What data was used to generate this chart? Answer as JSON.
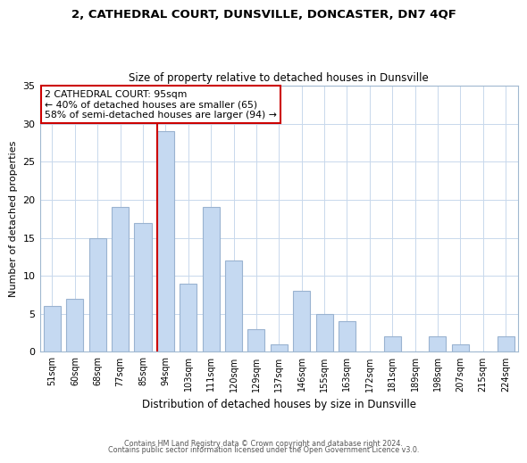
{
  "title1": "2, CATHEDRAL COURT, DUNSVILLE, DONCASTER, DN7 4QF",
  "title2": "Size of property relative to detached houses in Dunsville",
  "xlabel": "Distribution of detached houses by size in Dunsville",
  "ylabel": "Number of detached properties",
  "bar_labels": [
    "51sqm",
    "60sqm",
    "68sqm",
    "77sqm",
    "85sqm",
    "94sqm",
    "103sqm",
    "111sqm",
    "120sqm",
    "129sqm",
    "137sqm",
    "146sqm",
    "155sqm",
    "163sqm",
    "172sqm",
    "181sqm",
    "189sqm",
    "198sqm",
    "207sqm",
    "215sqm",
    "224sqm"
  ],
  "bar_values": [
    6,
    7,
    15,
    19,
    17,
    29,
    9,
    19,
    12,
    3,
    1,
    8,
    5,
    4,
    0,
    2,
    0,
    2,
    1,
    0,
    2
  ],
  "bar_color": "#c5d9f1",
  "bar_edge_color": "#9ab3d0",
  "marker_index": 5,
  "annotation_line1": "2 CATHEDRAL COURT: 95sqm",
  "annotation_line2": "← 40% of detached houses are smaller (65)",
  "annotation_line3": "58% of semi-detached houses are larger (94) →",
  "annotation_box_color": "#ffffff",
  "annotation_box_edge": "#cc0000",
  "vline_color": "#cc0000",
  "ylim": [
    0,
    35
  ],
  "yticks": [
    0,
    5,
    10,
    15,
    20,
    25,
    30,
    35
  ],
  "footer1": "Contains HM Land Registry data © Crown copyright and database right 2024.",
  "footer2": "Contains public sector information licensed under the Open Government Licence v3.0."
}
